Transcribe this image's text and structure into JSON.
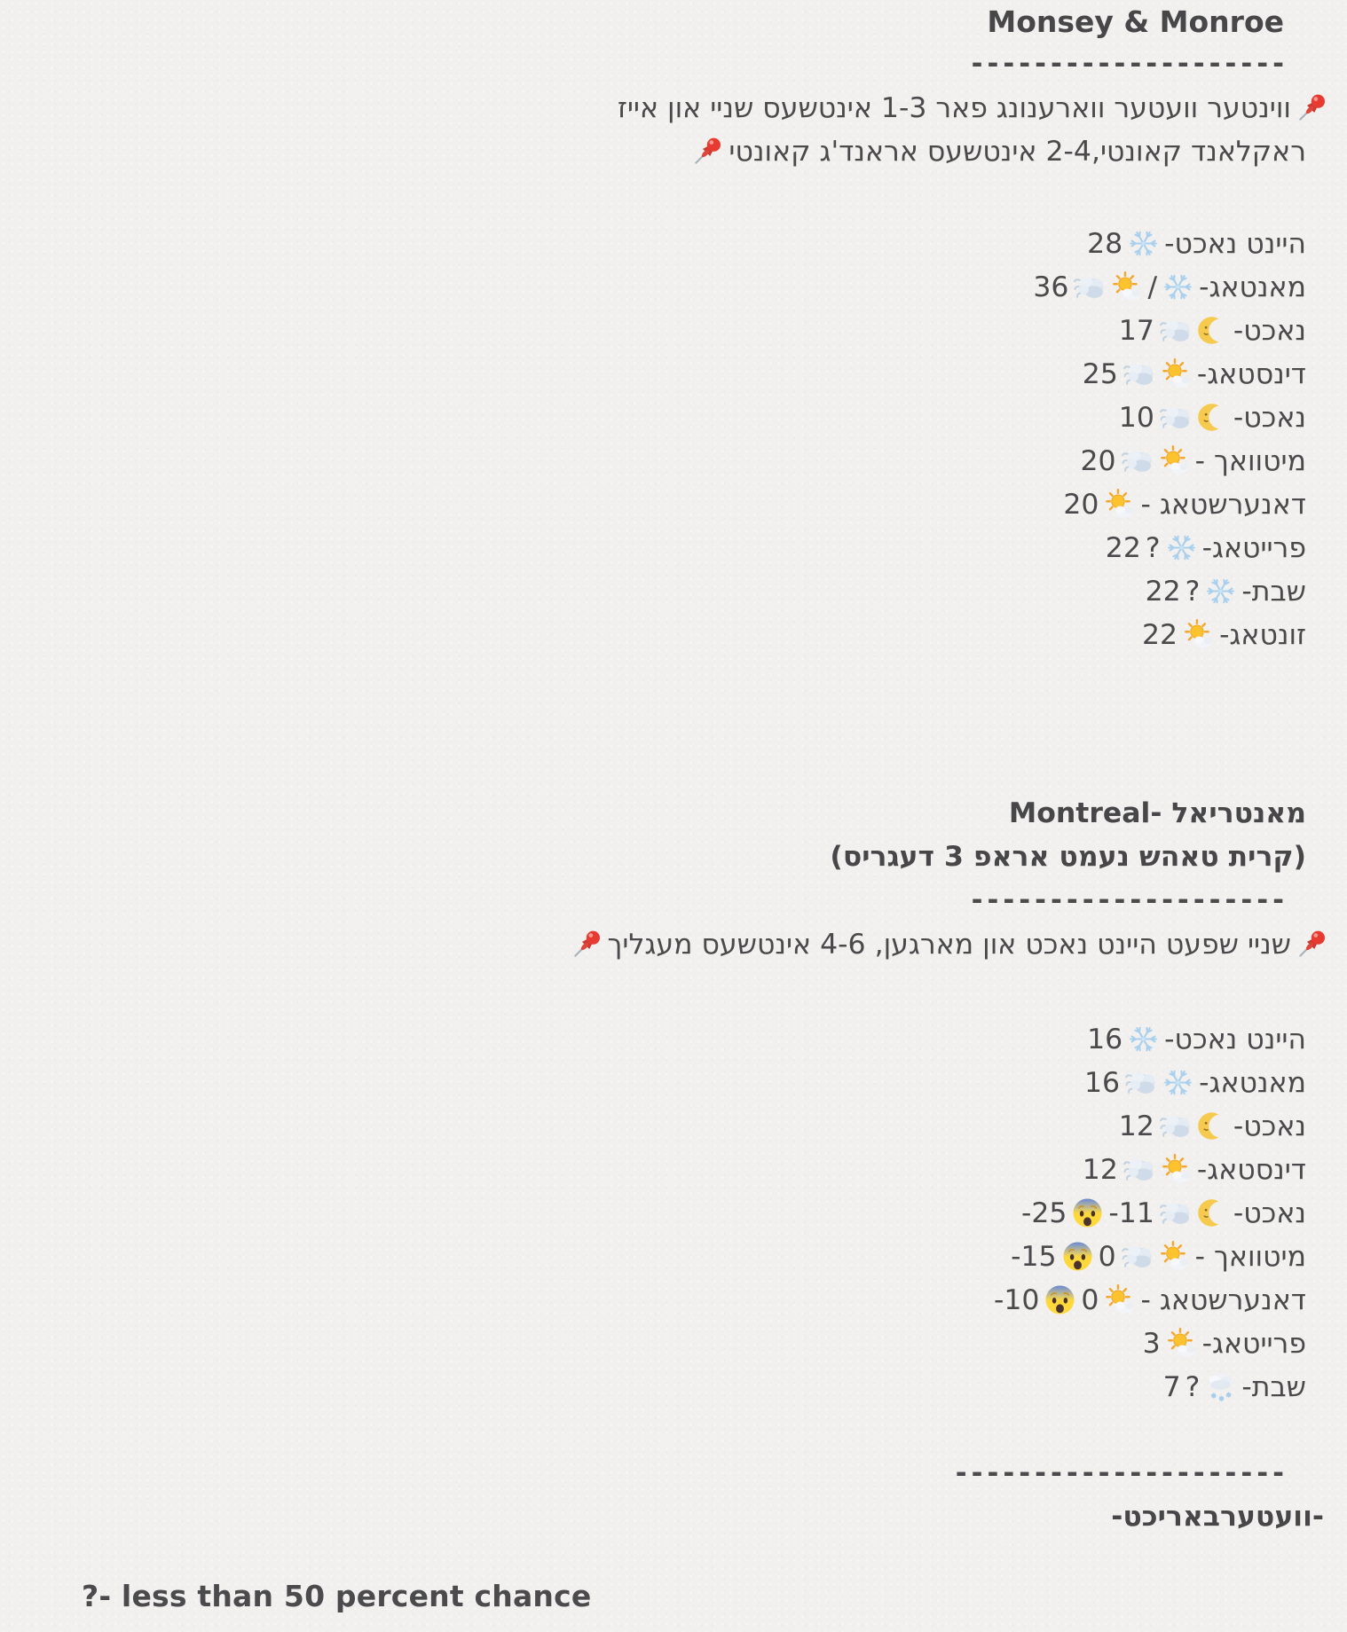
{
  "colors": {
    "background": "#f1f0ee",
    "text": "#4a4a4c",
    "pushpin_red": "#e73b32",
    "snowflake_blue": "#a8d0ee"
  },
  "monsey": {
    "title": "Monsey & Monroe",
    "separator": "--------------------",
    "warning_rows": [
      {
        "overhang": true,
        "tokens": [
          {
            "i": "pushpin"
          },
          {
            "t": "ווינטער וועטער ווארענונג פאר 1-3 אינטשעס שניי און אייז"
          }
        ]
      },
      {
        "tokens": [
          {
            "t": "ראקלאנד קאונטי,2-4 אינטשעס אראנד'ג קאונטי"
          },
          {
            "i": "pushpin"
          }
        ]
      }
    ],
    "forecast": [
      {
        "tokens": [
          {
            "t": "היינט נאכט-"
          },
          {
            "i": "snowflake"
          },
          {
            "n": "28"
          }
        ]
      },
      {
        "tokens": [
          {
            "t": "מאנטאג-"
          },
          {
            "i": "snowflake"
          },
          {
            "t": "/"
          },
          {
            "i": "sun-small-cloud"
          },
          {
            "i": "wind-face"
          },
          {
            "n": "36"
          }
        ]
      },
      {
        "tokens": [
          {
            "t": "נאכט-"
          },
          {
            "i": "moon-face"
          },
          {
            "i": "wind-face"
          },
          {
            "n": "17"
          }
        ]
      },
      {
        "tokens": [
          {
            "t": "דינסטאג-"
          },
          {
            "i": "sun-small-cloud"
          },
          {
            "i": "wind-face"
          },
          {
            "n": "25"
          }
        ]
      },
      {
        "tokens": [
          {
            "t": "נאכט-"
          },
          {
            "i": "moon-face"
          },
          {
            "i": "wind-face"
          },
          {
            "n": "10"
          }
        ]
      },
      {
        "tokens": [
          {
            "t": "מיטוואך -"
          },
          {
            "i": "sun-small-cloud"
          },
          {
            "i": "wind-face"
          },
          {
            "n": "20"
          }
        ]
      },
      {
        "tokens": [
          {
            "t": "דאנערשטאג -"
          },
          {
            "i": "sun-small-cloud"
          },
          {
            "n": "20"
          }
        ]
      },
      {
        "tokens": [
          {
            "t": "פרייטאג-"
          },
          {
            "i": "snowflake"
          },
          {
            "t": "?"
          },
          {
            "n": "22"
          }
        ]
      },
      {
        "tokens": [
          {
            "t": "שבת-"
          },
          {
            "i": "snowflake"
          },
          {
            "t": "?"
          },
          {
            "n": "22"
          }
        ]
      },
      {
        "tokens": [
          {
            "t": "זונטאג-"
          },
          {
            "i": "sun-small-cloud"
          },
          {
            "n": "22"
          }
        ]
      }
    ]
  },
  "montreal": {
    "title": "מאנטריאל -Montreal",
    "subtitle": "(קרית טאהש נעמט אראפ 3 דעגריס)",
    "separator": "--------------------",
    "warning_rows": [
      {
        "overhang": true,
        "tokens": [
          {
            "i": "pushpin"
          },
          {
            "t": "שניי שפעט היינט נאכט און מארגען, 4-6 אינטשעס מעגליך"
          },
          {
            "i": "pushpin"
          }
        ]
      }
    ],
    "forecast": [
      {
        "tokens": [
          {
            "t": "היינט נאכט-"
          },
          {
            "i": "snowflake"
          },
          {
            "n": "16"
          }
        ]
      },
      {
        "tokens": [
          {
            "t": "מאנטאג-"
          },
          {
            "i": "snowflake"
          },
          {
            "i": "wind-face"
          },
          {
            "n": "16"
          }
        ]
      },
      {
        "tokens": [
          {
            "t": "נאכט-"
          },
          {
            "i": "moon-face"
          },
          {
            "i": "wind-face"
          },
          {
            "n": "12"
          }
        ]
      },
      {
        "tokens": [
          {
            "t": "דינסטאג-"
          },
          {
            "i": "sun-small-cloud"
          },
          {
            "i": "wind-face"
          },
          {
            "n": "12"
          }
        ]
      },
      {
        "tokens": [
          {
            "t": "נאכט-"
          },
          {
            "i": "moon-face"
          },
          {
            "i": "wind-face"
          },
          {
            "n": "-11"
          },
          {
            "i": "fearful-face"
          },
          {
            "n": "-25"
          }
        ]
      },
      {
        "tokens": [
          {
            "t": "מיטוואך -"
          },
          {
            "i": "sun-small-cloud"
          },
          {
            "i": "wind-face"
          },
          {
            "n": "0"
          },
          {
            "i": "fearful-face"
          },
          {
            "n": "-15"
          }
        ]
      },
      {
        "tokens": [
          {
            "t": "דאנערשטאג -"
          },
          {
            "i": "sun-small-cloud"
          },
          {
            "n": "0"
          },
          {
            "i": "fearful-face"
          },
          {
            "n": "-10"
          }
        ]
      },
      {
        "tokens": [
          {
            "t": "פרייטאג-"
          },
          {
            "i": "sun-small-cloud"
          },
          {
            "n": "3"
          }
        ]
      },
      {
        "tokens": [
          {
            "t": "שבת-"
          },
          {
            "i": "snow-cloud"
          },
          {
            "t": "?"
          },
          {
            "n": "7"
          }
        ]
      }
    ]
  },
  "footer": {
    "separator": "---------------------",
    "signature": "-וועטערבאריכט-"
  },
  "legend": "?- less than 50 percent chance"
}
